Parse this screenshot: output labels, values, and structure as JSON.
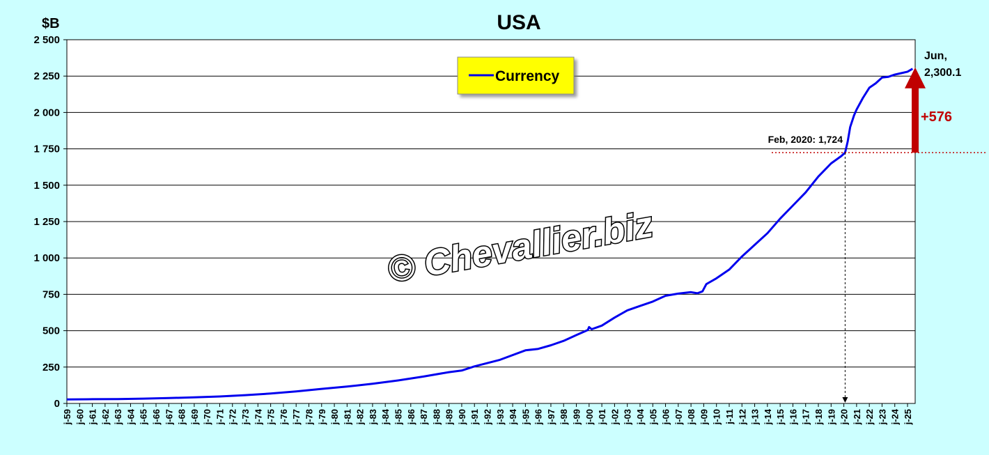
{
  "colors": {
    "background": "#ccffff",
    "plot_background": "#ffffff",
    "series": "#0000ee",
    "legend_background": "#ffff00",
    "annotation": "#c00000",
    "gridline": "#000000"
  },
  "chart_data": {
    "type": "line",
    "title": "USA",
    "ylabel": "$B",
    "xlabel": "",
    "ylim": [
      0,
      2500
    ],
    "yticks": [
      0,
      250,
      500,
      750,
      1000,
      1250,
      1500,
      1750,
      2000,
      2250,
      2500
    ],
    "ytick_labels": [
      "0",
      "250",
      "500",
      "750",
      "1 000",
      "1 250",
      "1 500",
      "1 750",
      "2 000",
      "2 250",
      "2 500"
    ],
    "xlim": [
      1959,
      2025.6
    ],
    "xtick_labels": [
      "j-59",
      "j-60",
      "j-61",
      "j-62",
      "j-63",
      "j-64",
      "j-65",
      "j-66",
      "j-67",
      "j-68",
      "j-69",
      "j-70",
      "j-71",
      "j-72",
      "j-73",
      "j-74",
      "j-75",
      "j-76",
      "j-77",
      "j-78",
      "j-79",
      "j-80",
      "j-81",
      "j-82",
      "j-83",
      "j-84",
      "j-85",
      "j-86",
      "j-87",
      "j-88",
      "j-89",
      "j-90",
      "j-91",
      "j-92",
      "j-93",
      "j-94",
      "j-95",
      "j-96",
      "j-97",
      "j-98",
      "j-99",
      "j-00",
      "j-01",
      "j-02",
      "j-03",
      "j-04",
      "j-05",
      "j-06",
      "j-07",
      "j-08",
      "j-09",
      "j-10",
      "j-11",
      "j-12",
      "j-13",
      "j-14",
      "j-15",
      "j-16",
      "j-17",
      "j-18",
      "j-19",
      "j-20",
      "j-21",
      "j-22",
      "j-23",
      "j-24",
      "j-25"
    ],
    "grid": true,
    "legend_position": "top-center",
    "series": [
      {
        "name": "Currency",
        "color": "#0000ee",
        "x": [
          1959,
          1961,
          1963,
          1965,
          1967,
          1969,
          1971,
          1973,
          1975,
          1977,
          1979,
          1981,
          1983,
          1985,
          1987,
          1989,
          1990,
          1991,
          1993,
          1995,
          1996,
          1997,
          1998,
          1999,
          1999.9,
          2000,
          2000.2,
          2001,
          2002,
          2003,
          2004,
          2005,
          2006,
          2007,
          2008,
          2008.5,
          2008.9,
          2009.2,
          2010,
          2011,
          2012,
          2013,
          2014,
          2015,
          2016,
          2017,
          2018,
          2019,
          2019.8,
          2020.1,
          2020.3,
          2020.5,
          2020.8,
          2021,
          2021.5,
          2022,
          2022.5,
          2023,
          2023.5,
          2024,
          2024.5,
          2025,
          2025.4
        ],
        "y": [
          28,
          29,
          30,
          33,
          37,
          42,
          48,
          57,
          68,
          83,
          100,
          116,
          135,
          158,
          185,
          215,
          226,
          255,
          300,
          365,
          375,
          400,
          430,
          470,
          505,
          525,
          510,
          535,
          590,
          640,
          670,
          700,
          740,
          755,
          765,
          757,
          770,
          820,
          860,
          920,
          1010,
          1090,
          1170,
          1270,
          1360,
          1450,
          1560,
          1650,
          1700,
          1724,
          1800,
          1900,
          1980,
          2020,
          2100,
          2170,
          2200,
          2240,
          2245,
          2260,
          2270,
          2280,
          2300.1
        ]
      }
    ],
    "annotations": {
      "feb2020": {
        "text": "Feb, 2020: 1,724",
        "x": 2020.1,
        "y": 1724
      },
      "jun_label_1": "Jun,",
      "jun_label_2": "2,300.1",
      "change": "+576"
    }
  },
  "watermark": "© Chevallier.biz"
}
